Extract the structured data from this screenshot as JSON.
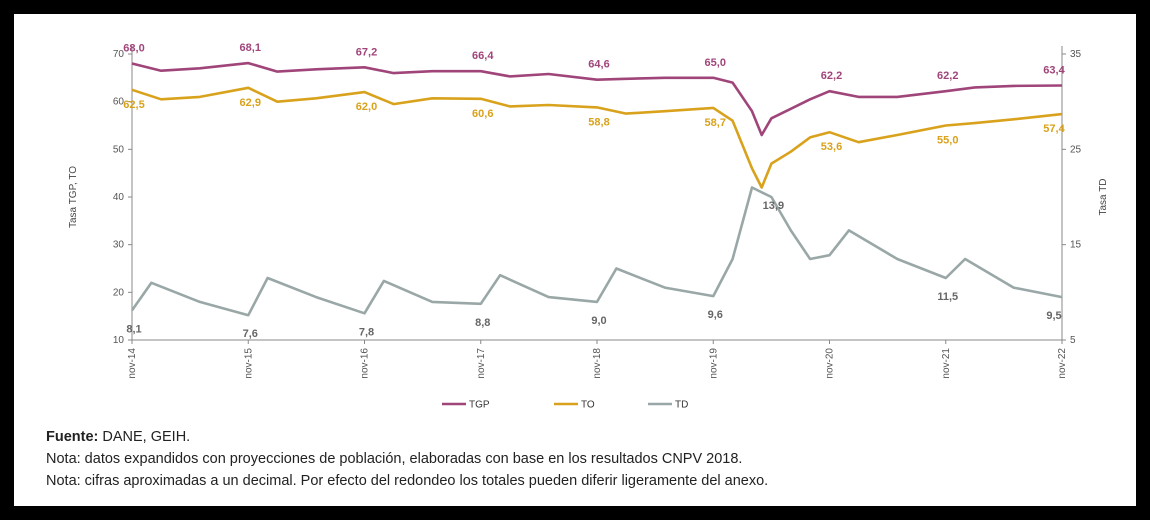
{
  "chart_data": {
    "type": "line",
    "x": [
      "nov-14",
      "nov-15",
      "nov-16",
      "nov-17",
      "nov-18",
      "nov-19",
      "nov-20",
      "nov-21",
      "nov-22"
    ],
    "x_ticks": [
      "nov-14",
      "nov-15",
      "nov-16",
      "nov-17",
      "nov-18",
      "nov-19",
      "nov-20",
      "nov-21",
      "nov-22"
    ],
    "ylabel_left": "Tasa TGP, TO",
    "ylabel_right": "Tasa TD",
    "ylim_left": [
      10,
      70
    ],
    "yticks_left": [
      "10",
      "20",
      "30",
      "40",
      "50",
      "60",
      "70"
    ],
    "ylim_right": [
      5,
      35
    ],
    "yticks_right": [
      "5",
      "15",
      "25",
      "35"
    ],
    "grid": false,
    "legend_position": "bottom",
    "series": [
      {
        "name": "TGP",
        "legend_label": "TGP",
        "axis": "left",
        "color": "#a0457a",
        "x": [
          "2014-11",
          "2015-02",
          "2015-06",
          "2015-11",
          "2016-02",
          "2016-06",
          "2016-11",
          "2017-02",
          "2017-06",
          "2017-11",
          "2018-02",
          "2018-06",
          "2018-11",
          "2019-02",
          "2019-06",
          "2019-11",
          "2020-01",
          "2020-03",
          "2020-04",
          "2020-05",
          "2020-07",
          "2020-09",
          "2020-11",
          "2021-02",
          "2021-06",
          "2021-11",
          "2022-02",
          "2022-06",
          "2022-11"
        ],
        "values": [
          68.0,
          66.5,
          67.0,
          68.1,
          66.3,
          66.8,
          67.2,
          66.0,
          66.4,
          66.4,
          65.3,
          65.8,
          64.6,
          64.8,
          65.0,
          65.0,
          64.0,
          58.0,
          53.0,
          56.5,
          58.5,
          60.5,
          62.2,
          61.0,
          61.0,
          62.2,
          63.0,
          63.3,
          63.4
        ],
        "labels": [
          [
            "2014-11",
            "68,0"
          ],
          [
            "2015-11",
            "68,1"
          ],
          [
            "2016-11",
            "67,2"
          ],
          [
            "2017-11",
            "66,4"
          ],
          [
            "2018-11",
            "64,6"
          ],
          [
            "2019-11",
            "65,0"
          ],
          [
            "2020-11",
            "62,2"
          ],
          [
            "2021-11",
            "62,2"
          ],
          [
            "2022-11",
            "63,4"
          ]
        ]
      },
      {
        "name": "TO",
        "legend_label": "TO",
        "axis": "left",
        "color": "#d9a21c",
        "x": [
          "2014-11",
          "2015-02",
          "2015-06",
          "2015-11",
          "2016-02",
          "2016-06",
          "2016-11",
          "2017-02",
          "2017-06",
          "2017-11",
          "2018-02",
          "2018-06",
          "2018-11",
          "2019-02",
          "2019-06",
          "2019-11",
          "2020-01",
          "2020-03",
          "2020-04",
          "2020-05",
          "2020-07",
          "2020-09",
          "2020-11",
          "2021-02",
          "2021-06",
          "2021-11",
          "2022-02",
          "2022-06",
          "2022-11"
        ],
        "values": [
          62.5,
          60.5,
          61.0,
          62.9,
          60.0,
          60.7,
          62.0,
          59.5,
          60.7,
          60.6,
          59.0,
          59.3,
          58.8,
          57.5,
          58.0,
          58.7,
          56.0,
          46.0,
          42.0,
          47.0,
          49.5,
          52.5,
          53.6,
          51.5,
          53.0,
          55.0,
          55.5,
          56.3,
          57.4
        ],
        "labels": [
          [
            "2014-11",
            "62,5"
          ],
          [
            "2015-11",
            "62,9"
          ],
          [
            "2016-11",
            "62,0"
          ],
          [
            "2017-11",
            "60,6"
          ],
          [
            "2018-11",
            "58,8"
          ],
          [
            "2019-11",
            "58,7"
          ],
          [
            "2020-11",
            "53,6"
          ],
          [
            "2021-11",
            "55,0"
          ],
          [
            "2022-11",
            "57,4"
          ]
        ]
      },
      {
        "name": "TD",
        "legend_label": "TD",
        "axis": "right",
        "color": "#9aa7a7",
        "x": [
          "2014-11",
          "2015-01",
          "2015-06",
          "2015-11",
          "2016-01",
          "2016-06",
          "2016-11",
          "2017-01",
          "2017-06",
          "2017-11",
          "2018-01",
          "2018-06",
          "2018-11",
          "2019-01",
          "2019-06",
          "2019-11",
          "2020-01",
          "2020-03",
          "2020-05",
          "2020-07",
          "2020-09",
          "2020-11",
          "2021-01",
          "2021-06",
          "2021-11",
          "2022-01",
          "2022-06",
          "2022-11"
        ],
        "values": [
          8.1,
          11.0,
          9.0,
          7.6,
          11.5,
          9.5,
          7.8,
          11.2,
          9.0,
          8.8,
          11.8,
          9.5,
          9.0,
          12.5,
          10.5,
          9.6,
          13.5,
          21.0,
          20.0,
          16.5,
          13.5,
          13.9,
          16.5,
          13.5,
          11.5,
          13.5,
          10.5,
          9.5
        ],
        "labels": [
          [
            "2014-11",
            "8,1"
          ],
          [
            "2015-11",
            "7,6"
          ],
          [
            "2016-11",
            "7,8"
          ],
          [
            "2017-11",
            "8,8"
          ],
          [
            "2018-11",
            "9,0"
          ],
          [
            "2019-11",
            "9,6"
          ],
          [
            "2020-05",
            "13,9"
          ],
          [
            "2021-11",
            "11,5"
          ],
          [
            "2022-11",
            "9,5"
          ]
        ]
      }
    ]
  },
  "notes": {
    "source_label": "Fuente:",
    "source_text": " DANE, GEIH.",
    "note1": "Nota: datos expandidos con proyecciones de población, elaboradas con base en los resultados CNPV 2018.",
    "note2": "Nota: cifras aproximadas a un decimal. Por efecto del redondeo los totales pueden diferir ligeramente del anexo."
  }
}
